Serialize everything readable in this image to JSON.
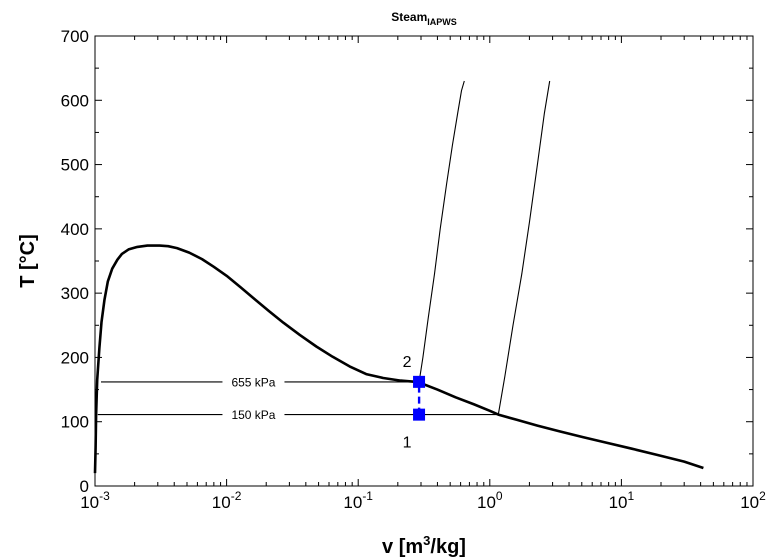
{
  "chart_data": {
    "type": "line",
    "title": "Steam",
    "title_subscript": "IAPWS",
    "xlabel": "v [m",
    "xlabel_sup": "3",
    "xlabel_tail": "/kg]",
    "ylabel": "T [°C]",
    "xscale": "log",
    "xlim": [
      0.001,
      100
    ],
    "ylim": [
      0,
      700
    ],
    "grid": false,
    "xticks": [
      {
        "value": 0.001,
        "base": "10",
        "exp": "-3"
      },
      {
        "value": 0.01,
        "base": "10",
        "exp": "-2"
      },
      {
        "value": 0.1,
        "base": "10",
        "exp": "-1"
      },
      {
        "value": 1,
        "base": "10",
        "exp": "0"
      },
      {
        "value": 10,
        "base": "10",
        "exp": "1"
      },
      {
        "value": 100,
        "base": "10",
        "exp": "2"
      }
    ],
    "yticks": [
      "0",
      "100",
      "200",
      "300",
      "400",
      "500",
      "600",
      "700"
    ],
    "series": [
      {
        "key": "saturation",
        "x": [
          0.001,
          0.00101,
          0.00102,
          0.00104,
          0.00108,
          0.00112,
          0.00118,
          0.00125,
          0.00135,
          0.00148,
          0.0016,
          0.0018,
          0.0021,
          0.0025,
          0.0031,
          0.0036,
          0.0042,
          0.0052,
          0.0065,
          0.008,
          0.01,
          0.0128,
          0.0165,
          0.021,
          0.027,
          0.036,
          0.048,
          0.064,
          0.086,
          0.115,
          0.155,
          0.21,
          0.28,
          0.29,
          0.4,
          0.55,
          0.76,
          1.0,
          1.16,
          1.6,
          2.3,
          3.4,
          5.1,
          7.8,
          12.0,
          19.0,
          30.0,
          42.0
        ],
        "y": [
          20,
          60,
          110,
          165,
          215,
          255,
          290,
          318,
          338,
          352,
          361,
          368,
          372,
          374,
          374,
          373,
          370,
          363,
          353,
          341,
          327,
          309,
          290,
          272,
          254,
          235,
          217,
          201,
          186,
          174,
          168,
          164,
          162,
          161,
          150,
          138,
          127,
          117,
          111,
          103,
          94,
          85,
          76,
          67,
          58,
          48,
          38,
          28
        ]
      },
      {
        "key": "isobar_655",
        "x": [
          0.00111,
          0.29,
          0.31,
          0.34,
          0.38,
          0.42,
          0.47,
          0.52,
          0.57,
          0.61,
          0.64
        ],
        "y": [
          162,
          162,
          200,
          260,
          330,
          400,
          470,
          530,
          580,
          615,
          630
        ]
      },
      {
        "key": "isobar_150",
        "x": [
          0.00105,
          1.16,
          1.3,
          1.5,
          1.75,
          2.0,
          2.3,
          2.6,
          2.85
        ],
        "y": [
          111,
          111,
          170,
          250,
          330,
          410,
          500,
          580,
          630
        ]
      },
      {
        "key": "process",
        "x": [
          0.29,
          0.29
        ],
        "y": [
          111,
          162
        ]
      }
    ],
    "points": [
      {
        "label": "1",
        "x": 0.29,
        "y": 111
      },
      {
        "label": "2",
        "x": 0.29,
        "y": 162
      }
    ],
    "annotations": [
      {
        "text": "655 kPa",
        "x": 0.016,
        "y": 162
      },
      {
        "text": "150 kPa",
        "x": 0.016,
        "y": 111
      }
    ],
    "colors": {
      "curve": "#000000",
      "process": "#0000ff",
      "marker": "#0000ff"
    }
  }
}
